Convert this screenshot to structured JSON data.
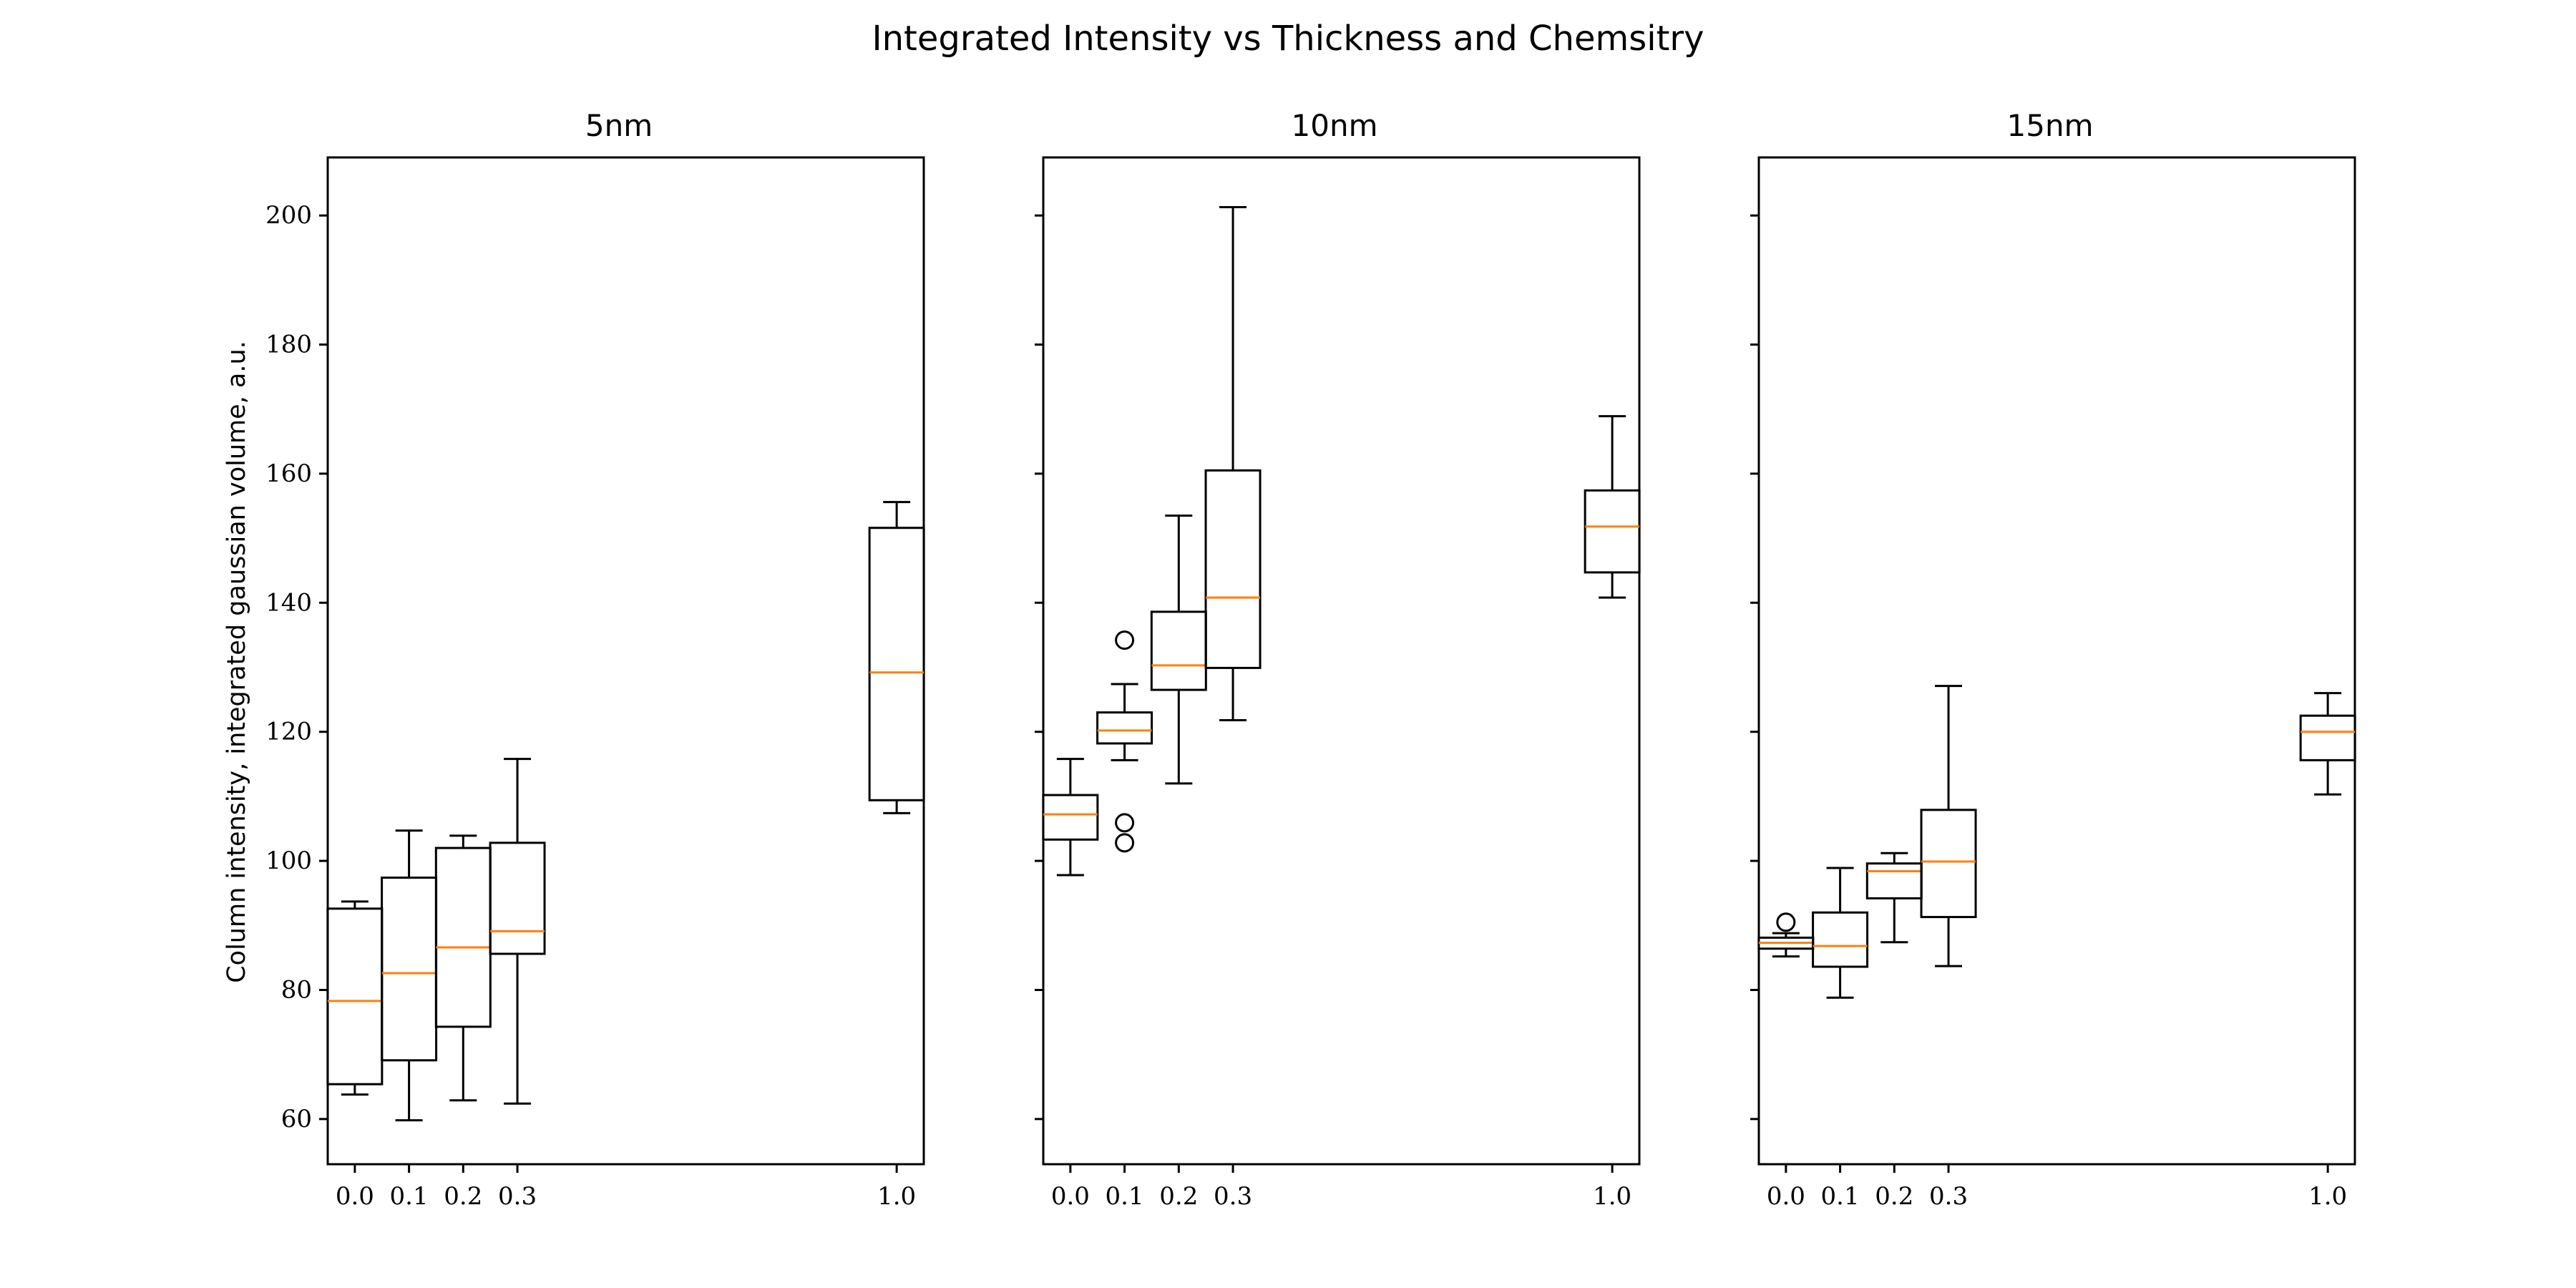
{
  "figure": {
    "title": "Integrated Intensity vs Thickness and Chemsitry",
    "ylabel": "Column intensity, integrated gaussian volume, a.u."
  },
  "colors": {
    "box": "#000000",
    "median": "#ff7f0e",
    "background": "#ffffff"
  },
  "chart_data": [
    {
      "type": "box",
      "title": "5nm",
      "x_ticks": [
        "0.0",
        "0.1",
        "0.2",
        "0.3",
        "1.0"
      ],
      "y_ticks": [
        "60",
        "80",
        "100",
        "120",
        "140",
        "160",
        "180",
        "200"
      ],
      "xlim": [
        -0.05,
        1.05
      ],
      "ylim": [
        53,
        209
      ],
      "boxes": [
        {
          "x": 0.0,
          "whisker_low": 63.8,
          "q1": 65.4,
          "median": 78.3,
          "q3": 92.6,
          "whisker_high": 93.7,
          "fliers": []
        },
        {
          "x": 0.1,
          "whisker_low": 59.8,
          "q1": 69.1,
          "median": 82.6,
          "q3": 97.4,
          "whisker_high": 104.7,
          "fliers": []
        },
        {
          "x": 0.2,
          "whisker_low": 62.9,
          "q1": 74.3,
          "median": 86.6,
          "q3": 102.0,
          "whisker_high": 103.9,
          "fliers": []
        },
        {
          "x": 0.3,
          "whisker_low": 62.4,
          "q1": 85.6,
          "median": 89.1,
          "q3": 102.8,
          "whisker_high": 115.8,
          "fliers": []
        },
        {
          "x": 1.0,
          "whisker_low": 107.4,
          "q1": 109.4,
          "median": 129.2,
          "q3": 151.6,
          "whisker_high": 155.6,
          "fliers": []
        }
      ]
    },
    {
      "type": "box",
      "title": "10nm",
      "x_ticks": [
        "0.0",
        "0.1",
        "0.2",
        "0.3",
        "1.0"
      ],
      "xlim": [
        -0.05,
        1.05
      ],
      "ylim": [
        53,
        209
      ],
      "boxes": [
        {
          "x": 0.0,
          "whisker_low": 97.8,
          "q1": 103.3,
          "median": 107.2,
          "q3": 110.2,
          "whisker_high": 115.8,
          "fliers": []
        },
        {
          "x": 0.1,
          "whisker_low": 115.6,
          "q1": 118.2,
          "median": 120.2,
          "q3": 123.0,
          "whisker_high": 127.4,
          "fliers": [
            134.2,
            105.9,
            102.8
          ]
        },
        {
          "x": 0.2,
          "whisker_low": 112.0,
          "q1": 126.5,
          "median": 130.3,
          "q3": 138.6,
          "whisker_high": 153.5,
          "fliers": []
        },
        {
          "x": 0.3,
          "whisker_low": 121.8,
          "q1": 129.9,
          "median": 140.8,
          "q3": 160.5,
          "whisker_high": 201.3,
          "fliers": []
        },
        {
          "x": 1.0,
          "whisker_low": 140.8,
          "q1": 144.7,
          "median": 151.8,
          "q3": 157.4,
          "whisker_high": 168.9,
          "fliers": []
        }
      ]
    },
    {
      "type": "box",
      "title": "15nm",
      "x_ticks": [
        "0.0",
        "0.1",
        "0.2",
        "0.3",
        "1.0"
      ],
      "xlim": [
        -0.05,
        1.05
      ],
      "ylim": [
        53,
        209
      ],
      "boxes": [
        {
          "x": 0.0,
          "whisker_low": 85.2,
          "q1": 86.4,
          "median": 87.3,
          "q3": 88.1,
          "whisker_high": 88.8,
          "fliers": [
            90.5
          ]
        },
        {
          "x": 0.1,
          "whisker_low": 78.8,
          "q1": 83.6,
          "median": 86.8,
          "q3": 92.0,
          "whisker_high": 98.9,
          "fliers": []
        },
        {
          "x": 0.2,
          "whisker_low": 87.4,
          "q1": 94.2,
          "median": 98.4,
          "q3": 99.6,
          "whisker_high": 101.2,
          "fliers": []
        },
        {
          "x": 0.3,
          "whisker_low": 83.7,
          "q1": 91.3,
          "median": 99.9,
          "q3": 107.9,
          "whisker_high": 127.1,
          "fliers": []
        },
        {
          "x": 1.0,
          "whisker_low": 110.3,
          "q1": 115.6,
          "median": 120.0,
          "q3": 122.5,
          "whisker_high": 126.0,
          "fliers": []
        }
      ]
    }
  ]
}
